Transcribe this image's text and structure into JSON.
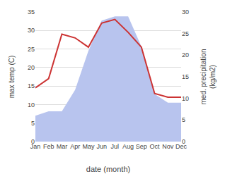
{
  "chart_data": {
    "type": "line",
    "categories": [
      "Jan",
      "Feb",
      "Mar",
      "Apr",
      "May",
      "Jun",
      "Jul",
      "Aug",
      "Sep",
      "Oct",
      "Nov",
      "Dec"
    ],
    "xlabel": "date (month)",
    "ylabel": "max temp (C)",
    "y2label": "med. precipitation\n(kg/m2)",
    "series": [
      {
        "type": "area",
        "axis": "y2",
        "color": "#b8c4ee",
        "values": [
          6,
          7,
          7,
          12,
          21,
          28,
          29,
          29,
          22,
          11,
          9,
          9
        ]
      },
      {
        "type": "line",
        "color": "#cc3333",
        "values": [
          14.5,
          17.0,
          29.0,
          28.0,
          25.5,
          32.0,
          33.0,
          29.5,
          25.5,
          13.0,
          12.0,
          12.0
        ]
      }
    ],
    "ylim": [
      0,
      35
    ],
    "yticks": [
      0,
      5,
      10,
      15,
      20,
      25,
      30,
      35
    ],
    "y2lim": [
      0,
      30
    ],
    "y2ticks": [
      0,
      5,
      10,
      15,
      20,
      25,
      30
    ],
    "grid": true
  }
}
